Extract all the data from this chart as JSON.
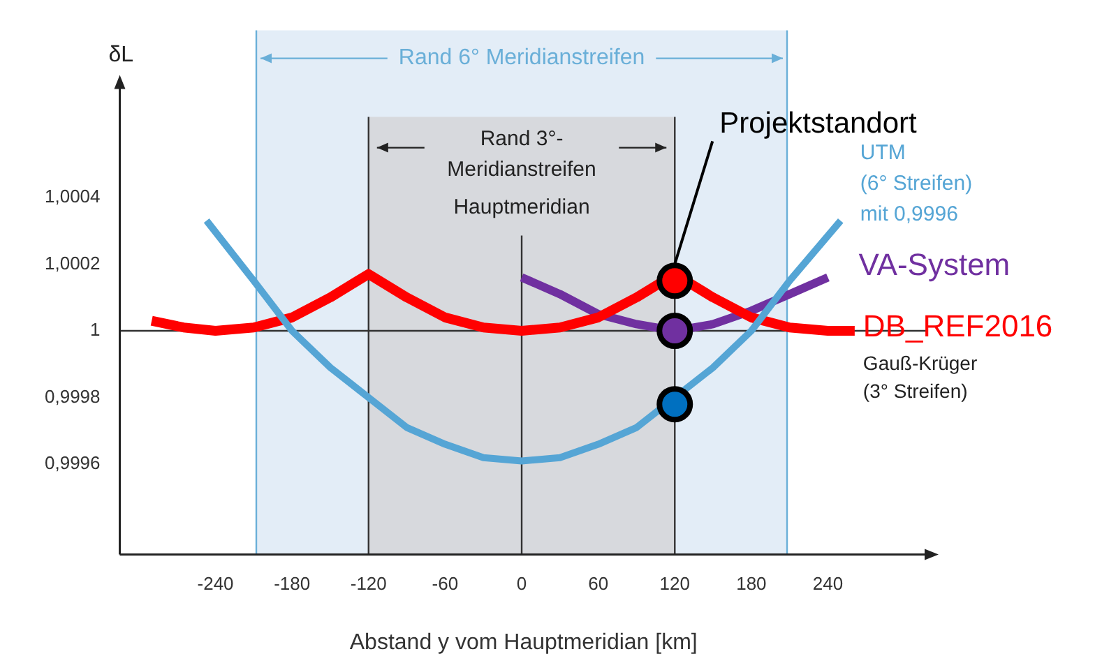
{
  "chart_data": {
    "type": "line",
    "xlabel": "Abstand y vom Hauptmeridian [km]",
    "ylabel": "δL",
    "xlim": [
      -315,
      318
    ],
    "ylim": [
      0.99933,
      1.0009
    ],
    "xticks": [
      -240,
      -180,
      -120,
      -60,
      0,
      60,
      120,
      180,
      240
    ],
    "yticks": [
      {
        "value": 0.9996,
        "label": "0,9996"
      },
      {
        "value": 0.9998,
        "label": "0,9998"
      },
      {
        "value": 1,
        "label": "1"
      },
      {
        "value": 1.0002,
        "label": "1,0002"
      },
      {
        "value": 1.0004,
        "label": "1,0004"
      }
    ],
    "legend": false,
    "bands": [
      {
        "axis": "x",
        "from": -208,
        "to": 208,
        "label": "Rand 6° Meridianstreifen",
        "color": "#e3edf7"
      },
      {
        "axis": "x",
        "from": -120,
        "to": 120,
        "label": "Rand 3°-Meridianstreifen",
        "color": "#d7d9dd"
      }
    ],
    "ref_lines": [
      {
        "axis": "x",
        "value": 0,
        "label": "Hauptmeridian",
        "color": "#333333"
      },
      {
        "axis": "x",
        "value": -208,
        "color": "#6aafd8"
      },
      {
        "axis": "x",
        "value": 208,
        "color": "#6aafd8"
      },
      {
        "axis": "x",
        "value": -120,
        "color": "#333333"
      },
      {
        "axis": "x",
        "value": 120,
        "color": "#333333"
      },
      {
        "axis": "y",
        "value": 1,
        "color": "#333333"
      }
    ],
    "series": [
      {
        "name": "UTM (6° Streifen) mit 0,9996",
        "color": "#55a5d5",
        "x": [
          -247,
          -210,
          -180,
          -150,
          -120,
          -90,
          -60,
          -30,
          0,
          30,
          60,
          90,
          120,
          150,
          180,
          210,
          250
        ],
        "values": [
          1.00033,
          1.00015,
          1.0,
          0.99989,
          0.9998,
          0.99971,
          0.99966,
          0.99962,
          0.99961,
          0.99962,
          0.99966,
          0.99971,
          null,
          0.99989,
          1.0,
          1.00015,
          1.00033
        ]
      },
      {
        "name": "DB_REF2016",
        "color": "#ff0000",
        "x": [
          -290,
          -265,
          -240,
          -210,
          -180,
          -150,
          -120,
          -90,
          -60,
          -30,
          0,
          30,
          60,
          90,
          120,
          150,
          180,
          210,
          240,
          261
        ],
        "values": [
          1.00003,
          1.00001,
          1.0,
          1.00001,
          1.00004,
          1.0001,
          1.00017,
          1.0001,
          1.00004,
          1.00001,
          1.0,
          1.00001,
          1.00004,
          1.0001,
          1.00017,
          1.0001,
          1.00004,
          1.00001,
          1.0,
          1.0
        ]
      },
      {
        "name": "VA-System",
        "color": "#7030a0",
        "x": [
          0,
          30,
          60,
          90,
          120,
          150,
          180,
          210,
          240
        ],
        "values": [
          1.00016,
          1.00011,
          1.00005,
          1.00002,
          1.0,
          1.00002,
          1.00006,
          1.00011,
          1.00016
        ]
      },
      {
        "type": "scatter",
        "marker": "circle",
        "color": "#ff0000",
        "x": [
          120
        ],
        "values": [
          1.00015
        ]
      },
      {
        "type": "scatter",
        "marker": "circle",
        "color": "#7030a0",
        "x": [
          120
        ],
        "values": [
          1.0
        ]
      },
      {
        "type": "scatter",
        "marker": "circle",
        "color": "#0070c0",
        "x": [
          120
        ],
        "values": [
          0.99978
        ]
      }
    ],
    "annotations": [
      {
        "text": "Projektstandort",
        "x": 120,
        "y": 1.0002
      },
      "Gauß-Krüger (3° Streifen)"
    ]
  }
}
